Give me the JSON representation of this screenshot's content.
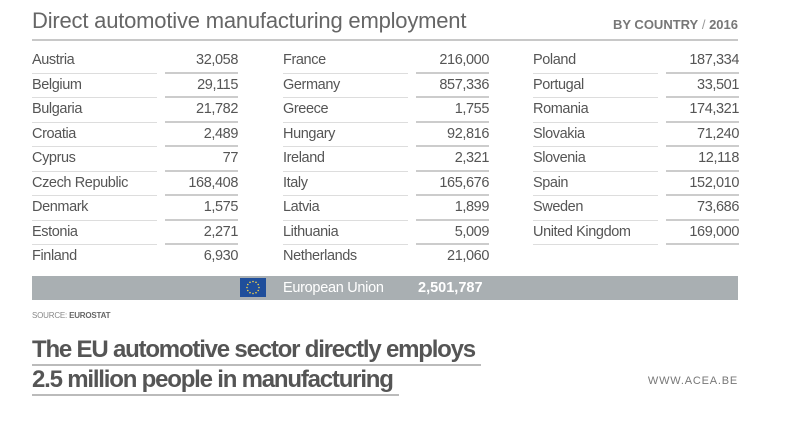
{
  "header": {
    "title": "Direct automotive manufacturing employment",
    "subtitle_a": "BY COUNTRY",
    "subtitle_sep": " / ",
    "subtitle_b": "2016"
  },
  "columns": [
    [
      {
        "country": "Austria",
        "value": "32,058"
      },
      {
        "country": "Belgium",
        "value": "29,115"
      },
      {
        "country": "Bulgaria",
        "value": "21,782"
      },
      {
        "country": "Croatia",
        "value": "2,489"
      },
      {
        "country": "Cyprus",
        "value": "77"
      },
      {
        "country": "Czech Republic",
        "value": "168,408"
      },
      {
        "country": "Denmark",
        "value": "1,575"
      },
      {
        "country": "Estonia",
        "value": "2,271"
      },
      {
        "country": "Finland",
        "value": "6,930"
      }
    ],
    [
      {
        "country": "France",
        "value": "216,000"
      },
      {
        "country": "Germany",
        "value": "857,336"
      },
      {
        "country": "Greece",
        "value": "1,755"
      },
      {
        "country": "Hungary",
        "value": "92,816"
      },
      {
        "country": "Ireland",
        "value": "2,321"
      },
      {
        "country": "Italy",
        "value": "165,676"
      },
      {
        "country": "Latvia",
        "value": "1,899"
      },
      {
        "country": "Lithuania",
        "value": "5,009"
      },
      {
        "country": "Netherlands",
        "value": "21,060"
      }
    ],
    [
      {
        "country": "Poland",
        "value": "187,334"
      },
      {
        "country": "Portugal",
        "value": "33,501"
      },
      {
        "country": "Romania",
        "value": "174,321"
      },
      {
        "country": "Slovakia",
        "value": "71,240"
      },
      {
        "country": "Slovenia",
        "value": "12,118"
      },
      {
        "country": "Spain",
        "value": "152,010"
      },
      {
        "country": "Sweden",
        "value": "73,686"
      },
      {
        "country": "United Kingdom",
        "value": "169,000"
      }
    ]
  ],
  "total": {
    "label": "European Union",
    "value": "2,501,787",
    "icon": "eu-flag-icon",
    "bar_color": "#a9afb2",
    "flag_color": "#1f4e9b"
  },
  "source": {
    "prefix": "SOURCE:",
    "name": "EUROSTAT"
  },
  "headline": {
    "line1": "The EU automotive sector directly employs",
    "line2": "2.5 million people in manufacturing"
  },
  "website": "WWW.ACEA.BE"
}
